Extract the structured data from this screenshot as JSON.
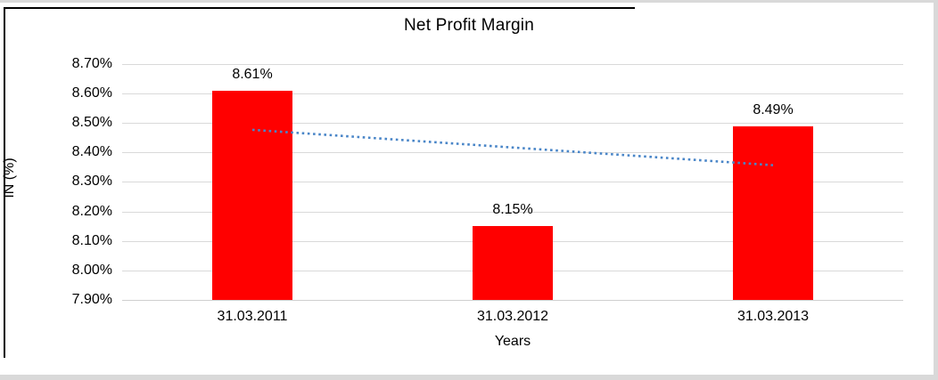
{
  "chart_data": {
    "type": "bar",
    "title": "Net Profit Margin",
    "xlabel": "Years",
    "ylabel": "IN (%)",
    "categories": [
      "31.03.2011",
      "31.03.2012",
      "31.03.2013"
    ],
    "values": [
      8.61,
      8.15,
      8.49
    ],
    "data_labels": [
      "8.61%",
      "8.15%",
      "8.49%"
    ],
    "yticks": [
      {
        "label": "8.70%",
        "value": 8.7
      },
      {
        "label": "8.60%",
        "value": 8.6
      },
      {
        "label": "8.50%",
        "value": 8.5
      },
      {
        "label": "8.40%",
        "value": 8.4
      },
      {
        "label": "8.30%",
        "value": 8.3
      },
      {
        "label": "8.20%",
        "value": 8.2
      },
      {
        "label": "8.10%",
        "value": 8.1
      },
      {
        "label": "8.00%",
        "value": 8.0
      },
      {
        "label": "7.90%",
        "value": 7.9
      }
    ],
    "ylim": [
      7.9,
      8.7
    ],
    "grid": true,
    "legend": "none",
    "bar_color": "#FF0000",
    "gridline_color": "#D9D9D9",
    "text_color": "#000000",
    "trendline": {
      "type": "linear",
      "style": "dotted",
      "color": "#4A86C8",
      "start_value": 8.477,
      "end_value": 8.357
    }
  }
}
